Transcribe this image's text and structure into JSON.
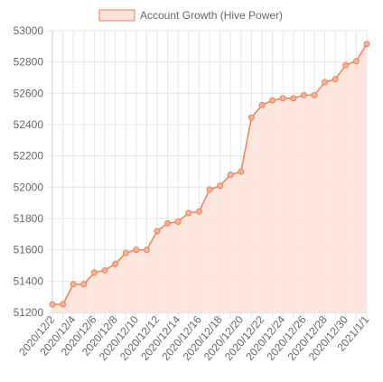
{
  "chart_data": {
    "type": "area",
    "legend": {
      "label": "Account Growth (Hive Power)",
      "position": "top-center"
    },
    "colors": {
      "line": "#e8825a",
      "fill": "#fde3d9",
      "point_fill": "#f5b49a",
      "grid": "#e6e6e6",
      "tick_text": "#666666"
    },
    "grid": true,
    "ylim": [
      51200,
      53000
    ],
    "y_ticks": [
      51200,
      51400,
      51600,
      51800,
      52000,
      52200,
      52400,
      52600,
      52800,
      53000
    ],
    "x_tick_labels": [
      "2020/12/2",
      "2020/12/4",
      "2020/12/6",
      "2020/12/8",
      "2020/12/10",
      "2020/12/12",
      "2020/12/14",
      "2020/12/16",
      "2020/12/18",
      "2020/12/20",
      "2020/12/22",
      "2020/12/24",
      "2020/12/26",
      "2020/12/28",
      "2020/12/30",
      "2021/1/1"
    ],
    "x": [
      "2020/12/2",
      "2020/12/3",
      "2020/12/4",
      "2020/12/5",
      "2020/12/6",
      "2020/12/7",
      "2020/12/8",
      "2020/12/9",
      "2020/12/10",
      "2020/12/11",
      "2020/12/12",
      "2020/12/13",
      "2020/12/14",
      "2020/12/15",
      "2020/12/16",
      "2020/12/17",
      "2020/12/18",
      "2020/12/19",
      "2020/12/20",
      "2020/12/21",
      "2020/12/22",
      "2020/12/23",
      "2020/12/24",
      "2020/12/25",
      "2020/12/26",
      "2020/12/27",
      "2020/12/28",
      "2020/12/29",
      "2020/12/30",
      "2020/12/31",
      "2021/1/1"
    ],
    "series": [
      {
        "name": "Account Growth (Hive Power)",
        "values": [
          51252,
          51252,
          51380,
          51380,
          51455,
          51470,
          51510,
          51580,
          51600,
          51600,
          51720,
          51770,
          51780,
          51835,
          51845,
          51985,
          52010,
          52080,
          52100,
          52445,
          52525,
          52555,
          52568,
          52568,
          52588,
          52588,
          52672,
          52690,
          52780,
          52805,
          52915
        ]
      }
    ]
  }
}
